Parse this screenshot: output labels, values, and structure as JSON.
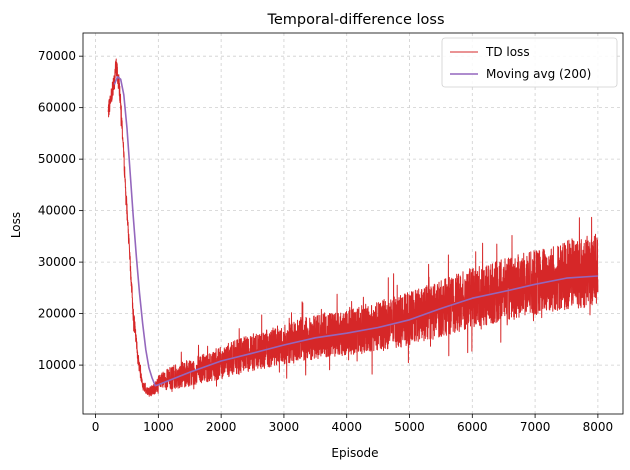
{
  "chart_data": {
    "type": "line",
    "title": "Temporal-difference loss",
    "xlabel": "Episode",
    "ylabel": "Loss",
    "xlim": [
      -200,
      8400
    ],
    "ylim": [
      500,
      74500
    ],
    "xticks": [
      0,
      1000,
      2000,
      3000,
      4000,
      5000,
      6000,
      7000,
      8000
    ],
    "yticks": [
      10000,
      20000,
      30000,
      40000,
      50000,
      60000,
      70000
    ],
    "grid": true,
    "grid_style": "dashed",
    "legend_position": "top-right",
    "colors": {
      "td_loss": "#d62728",
      "moving_avg": "#9467bd"
    },
    "series": [
      {
        "name": "TD loss",
        "style": "noisy-line",
        "color": "#d62728",
        "x": [
          200,
          260,
          330,
          380,
          420,
          480,
          540,
          600,
          680,
          750,
          820,
          880,
          950,
          1000,
          1200,
          1500,
          2000,
          2500,
          3000,
          3500,
          4000,
          4500,
          5000,
          5500,
          6000,
          6500,
          7000,
          7500,
          8000
        ],
        "center": [
          59000,
          63000,
          68000,
          64000,
          57000,
          44000,
          32000,
          20000,
          11000,
          6000,
          5000,
          5000,
          5500,
          6500,
          7500,
          8500,
          10500,
          12500,
          14000,
          15500,
          16500,
          17500,
          19000,
          21000,
          23000,
          24500,
          26000,
          27500,
          28500
        ],
        "noise_amplitude": [
          1500,
          2000,
          2000,
          2000,
          1500,
          1500,
          1500,
          1500,
          1200,
          1000,
          900,
          1000,
          1200,
          1500,
          2200,
          2600,
          3200,
          3600,
          4000,
          4300,
          4600,
          4900,
          5200,
          5500,
          5800,
          6100,
          6400,
          6800,
          7000
        ]
      },
      {
        "name": "Moving avg (200)",
        "style": "line",
        "color": "#9467bd",
        "x": [
          300,
          350,
          400,
          450,
          500,
          550,
          600,
          650,
          700,
          750,
          800,
          850,
          900,
          950,
          1000,
          1250,
          1500,
          2000,
          2500,
          3000,
          3500,
          4000,
          4500,
          5000,
          5500,
          6000,
          6500,
          7000,
          7500,
          8000
        ],
        "values": [
          64500,
          66000,
          65500,
          62500,
          56000,
          47500,
          39000,
          31000,
          24000,
          18000,
          13000,
          9500,
          7500,
          6000,
          6200,
          7400,
          8600,
          10800,
          12300,
          13900,
          15300,
          16200,
          17300,
          18800,
          21000,
          23000,
          24300,
          25700,
          26900,
          27300
        ]
      }
    ]
  }
}
